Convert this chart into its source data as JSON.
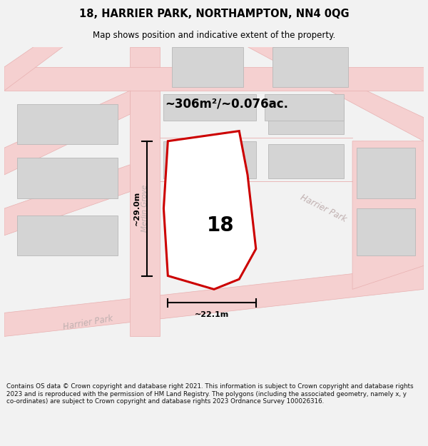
{
  "title_line1": "18, HARRIER PARK, NORTHAMPTON, NN4 0QG",
  "title_line2": "Map shows position and indicative extent of the property.",
  "area_label": "~306m²/~0.076ac.",
  "number_label": "18",
  "dim_height": "~29.0m",
  "dim_width": "~22.1m",
  "street_merlin": "Merlin Grove",
  "street_harrier_bottom": "Harrier Park",
  "street_harrier_right": "Harrier Park",
  "footer_text": "Contains OS data © Crown copyright and database right 2021. This information is subject to Crown copyright and database rights 2023 and is reproduced with the permission of HM Land Registry. The polygons (including the associated geometry, namely x, y co-ordinates) are subject to Crown copyright and database rights 2023 Ordnance Survey 100026316.",
  "bg_color": "#f2f2f2",
  "map_bg": "#f8f8f8",
  "road_fill": "#f5d0d0",
  "road_edge": "#e8b0b0",
  "building_fill": "#d4d4d4",
  "building_edge": "#b8b8b8",
  "plot_edge": "#cc0000",
  "plot_fill": "#ffffff",
  "street_color": "#c0b0b0",
  "dim_color": "#000000",
  "title_color": "#000000",
  "footer_color": "#111111"
}
